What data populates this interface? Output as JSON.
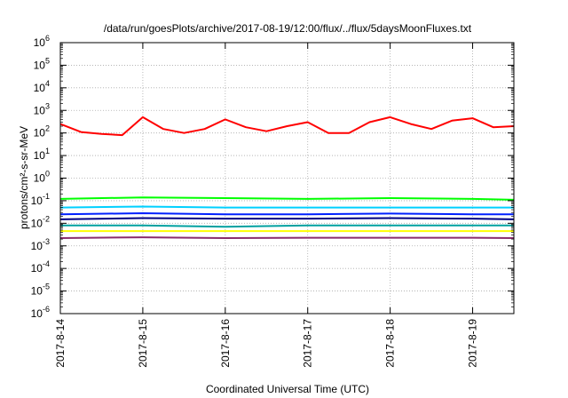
{
  "chart_data": {
    "type": "line",
    "title": "/data/run/goesPlots/archive/2017-08-19/12:00/flux/../flux/5daysMoonFluxes.txt",
    "xlabel": "Coordinated Universal Time (UTC)",
    "ylabel": "protons/cm²-s-sr-MeV",
    "yscale": "log",
    "ylim": [
      1e-06,
      1000000.0
    ],
    "xlim": [
      "2017-08-14T00:00",
      "2017-08-19T12:00"
    ],
    "grid": true,
    "legend": "none",
    "x_ticks": [
      "2017-8-14",
      "2017-8-15",
      "2017-8-16",
      "2017-8-17",
      "2017-8-18",
      "2017-8-19"
    ],
    "y_ticks": [
      {
        "base": "10",
        "exp": "-6"
      },
      {
        "base": "10",
        "exp": "-5"
      },
      {
        "base": "10",
        "exp": "-4"
      },
      {
        "base": "10",
        "exp": "-3"
      },
      {
        "base": "10",
        "exp": "-2"
      },
      {
        "base": "10",
        "exp": "-1"
      },
      {
        "base": "10",
        "exp": "0"
      },
      {
        "base": "10",
        "exp": "1"
      },
      {
        "base": "10",
        "exp": "2"
      },
      {
        "base": "10",
        "exp": "3"
      },
      {
        "base": "10",
        "exp": "4"
      },
      {
        "base": "10",
        "exp": "5"
      },
      {
        "base": "10",
        "exp": "6"
      }
    ],
    "series": [
      {
        "color": "#ff0000",
        "x": [
          "2017-08-14T00:00",
          "2017-08-14T06:00",
          "2017-08-14T12:00",
          "2017-08-14T18:00",
          "2017-08-15T00:00",
          "2017-08-15T06:00",
          "2017-08-15T12:00",
          "2017-08-15T18:00",
          "2017-08-16T00:00",
          "2017-08-16T06:00",
          "2017-08-16T12:00",
          "2017-08-16T18:00",
          "2017-08-17T00:00",
          "2017-08-17T06:00",
          "2017-08-17T12:00",
          "2017-08-17T18:00",
          "2017-08-18T00:00",
          "2017-08-18T06:00",
          "2017-08-18T12:00",
          "2017-08-18T18:00",
          "2017-08-19T00:00",
          "2017-08-19T06:00",
          "2017-08-19T12:00"
        ],
        "y": [
          250,
          110,
          90,
          80,
          500,
          150,
          100,
          150,
          400,
          180,
          120,
          200,
          300,
          100,
          100,
          300,
          500,
          250,
          150,
          350,
          450,
          180,
          200
        ]
      },
      {
        "color": "#00ff00",
        "x": [
          "2017-08-14T00:00",
          "2017-08-15T00:00",
          "2017-08-16T00:00",
          "2017-08-17T00:00",
          "2017-08-18T00:00",
          "2017-08-19T00:00",
          "2017-08-19T12:00"
        ],
        "y": [
          0.12,
          0.14,
          0.13,
          0.12,
          0.13,
          0.12,
          0.11
        ]
      },
      {
        "color": "#00d0ff",
        "x": [
          "2017-08-14T00:00",
          "2017-08-15T00:00",
          "2017-08-16T00:00",
          "2017-08-17T00:00",
          "2017-08-18T00:00",
          "2017-08-19T00:00",
          "2017-08-19T12:00"
        ],
        "y": [
          0.05,
          0.055,
          0.05,
          0.05,
          0.05,
          0.05,
          0.05
        ]
      },
      {
        "color": "#00a0a0",
        "x": [
          "2017-08-14T00:00",
          "2017-08-15T00:00",
          "2017-08-16T00:00",
          "2017-08-17T00:00",
          "2017-08-18T00:00",
          "2017-08-19T00:00",
          "2017-08-19T12:00"
        ],
        "y": [
          0.008,
          0.008,
          0.007,
          0.008,
          0.008,
          0.008,
          0.008
        ]
      },
      {
        "color": "#0020ff",
        "x": [
          "2017-08-14T00:00",
          "2017-08-15T00:00",
          "2017-08-16T00:00",
          "2017-08-17T00:00",
          "2017-08-18T00:00",
          "2017-08-19T00:00",
          "2017-08-19T12:00"
        ],
        "y": [
          0.025,
          0.028,
          0.025,
          0.025,
          0.027,
          0.025,
          0.025
        ]
      },
      {
        "color": "#000080",
        "x": [
          "2017-08-14T00:00",
          "2017-08-15T00:00",
          "2017-08-16T00:00",
          "2017-08-17T00:00",
          "2017-08-18T00:00",
          "2017-08-19T00:00",
          "2017-08-19T12:00"
        ],
        "y": [
          0.015,
          0.017,
          0.016,
          0.016,
          0.017,
          0.016,
          0.015
        ]
      },
      {
        "color": "#ffff00",
        "x": [
          "2017-08-14T00:00",
          "2017-08-19T12:00"
        ],
        "y": [
          0.0045,
          0.0045
        ]
      },
      {
        "color": "#8b2c6c",
        "x": [
          "2017-08-14T00:00",
          "2017-08-15T00:00",
          "2017-08-16T00:00",
          "2017-08-17T00:00",
          "2017-08-18T00:00",
          "2017-08-19T00:00",
          "2017-08-19T12:00"
        ],
        "y": [
          0.0022,
          0.0024,
          0.0022,
          0.0023,
          0.0023,
          0.0023,
          0.0022
        ]
      }
    ]
  }
}
